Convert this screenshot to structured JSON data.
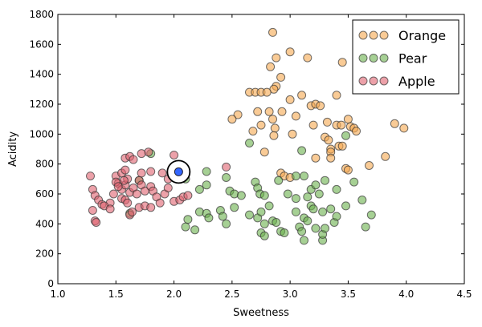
{
  "chart_data": {
    "type": "scatter",
    "xlabel": "Sweetness",
    "ylabel": "Acidity",
    "xlim": [
      1.0,
      4.5
    ],
    "ylim": [
      0,
      1800
    ],
    "xticks": [
      "1.0",
      "1.5",
      "2.0",
      "2.5",
      "3.0",
      "3.5",
      "4.0",
      "4.5"
    ],
    "yticks": [
      "0",
      "200",
      "400",
      "600",
      "800",
      "1000",
      "1200",
      "1400",
      "1600",
      "1800"
    ],
    "grid": false,
    "legend_position": "upper right",
    "series": [
      {
        "name": "Orange",
        "color": "#f5a850",
        "points": [
          [
            2.85,
            1680
          ],
          [
            3.0,
            1550
          ],
          [
            3.15,
            1510
          ],
          [
            2.88,
            1510
          ],
          [
            3.45,
            1480
          ],
          [
            2.83,
            1450
          ],
          [
            2.92,
            1380
          ],
          [
            2.88,
            1320
          ],
          [
            2.86,
            1300
          ],
          [
            2.65,
            1280
          ],
          [
            2.7,
            1280
          ],
          [
            2.75,
            1280
          ],
          [
            2.8,
            1280
          ],
          [
            3.1,
            1260
          ],
          [
            3.0,
            1230
          ],
          [
            3.4,
            1260
          ],
          [
            2.72,
            1150
          ],
          [
            2.82,
            1150
          ],
          [
            2.93,
            1150
          ],
          [
            3.18,
            1190
          ],
          [
            3.22,
            1200
          ],
          [
            3.26,
            1190
          ],
          [
            2.55,
            1130
          ],
          [
            2.5,
            1100
          ],
          [
            2.85,
            1100
          ],
          [
            2.75,
            1060
          ],
          [
            2.68,
            1020
          ],
          [
            2.87,
            1040
          ],
          [
            2.86,
            990
          ],
          [
            3.02,
            1000
          ],
          [
            3.05,
            1120
          ],
          [
            3.2,
            1060
          ],
          [
            3.32,
            1080
          ],
          [
            3.4,
            1060
          ],
          [
            3.44,
            1060
          ],
          [
            3.5,
            1100
          ],
          [
            3.52,
            1050
          ],
          [
            3.55,
            1040
          ],
          [
            3.57,
            1020
          ],
          [
            3.9,
            1070
          ],
          [
            3.98,
            1040
          ],
          [
            3.3,
            980
          ],
          [
            3.33,
            960
          ],
          [
            3.35,
            900
          ],
          [
            3.35,
            880
          ],
          [
            3.42,
            920
          ],
          [
            3.45,
            920
          ],
          [
            2.78,
            880
          ],
          [
            3.22,
            840
          ],
          [
            3.35,
            840
          ],
          [
            3.82,
            850
          ],
          [
            2.92,
            740
          ],
          [
            2.95,
            720
          ],
          [
            3.0,
            710
          ],
          [
            3.48,
            770
          ],
          [
            3.5,
            760
          ],
          [
            3.68,
            790
          ]
        ]
      },
      {
        "name": "Pear",
        "color": "#6ab04c",
        "points": [
          [
            1.8,
            870
          ],
          [
            2.28,
            750
          ],
          [
            2.65,
            940
          ],
          [
            3.1,
            890
          ],
          [
            3.48,
            990
          ],
          [
            2.1,
            700
          ],
          [
            2.45,
            710
          ],
          [
            2.7,
            680
          ],
          [
            2.9,
            690
          ],
          [
            3.05,
            720
          ],
          [
            3.12,
            720
          ],
          [
            3.3,
            690
          ],
          [
            3.4,
            630
          ],
          [
            3.55,
            680
          ],
          [
            2.22,
            630
          ],
          [
            2.28,
            660
          ],
          [
            2.48,
            620
          ],
          [
            2.52,
            600
          ],
          [
            2.58,
            590
          ],
          [
            2.72,
            640
          ],
          [
            2.74,
            600
          ],
          [
            2.78,
            590
          ],
          [
            2.82,
            520
          ],
          [
            2.98,
            600
          ],
          [
            3.05,
            570
          ],
          [
            3.15,
            580
          ],
          [
            3.18,
            630
          ],
          [
            3.22,
            660
          ],
          [
            3.25,
            600
          ],
          [
            3.28,
            480
          ],
          [
            3.35,
            500
          ],
          [
            3.48,
            520
          ],
          [
            3.62,
            560
          ],
          [
            3.7,
            460
          ],
          [
            2.22,
            480
          ],
          [
            2.28,
            470
          ],
          [
            2.4,
            490
          ],
          [
            2.42,
            450
          ],
          [
            2.45,
            400
          ],
          [
            2.52,
            510
          ],
          [
            2.65,
            460
          ],
          [
            2.72,
            440
          ],
          [
            2.75,
            480
          ],
          [
            2.78,
            400
          ],
          [
            2.85,
            420
          ],
          [
            2.88,
            410
          ],
          [
            2.92,
            350
          ],
          [
            3.05,
            480
          ],
          [
            3.08,
            380
          ],
          [
            3.1,
            350
          ],
          [
            3.12,
            440
          ],
          [
            3.15,
            420
          ],
          [
            3.18,
            520
          ],
          [
            3.2,
            500
          ],
          [
            3.38,
            410
          ],
          [
            3.4,
            450
          ],
          [
            3.65,
            380
          ],
          [
            2.12,
            430
          ],
          [
            2.1,
            380
          ],
          [
            2.18,
            360
          ],
          [
            2.75,
            340
          ],
          [
            2.78,
            320
          ],
          [
            2.95,
            340
          ],
          [
            3.12,
            290
          ],
          [
            3.28,
            290
          ],
          [
            3.28,
            330
          ],
          [
            3.3,
            370
          ],
          [
            3.22,
            370
          ],
          [
            1.62,
            470
          ],
          [
            1.7,
            690
          ],
          [
            2.3,
            440
          ]
        ]
      },
      {
        "name": "Apple",
        "color": "#e06370",
        "points": [
          [
            1.78,
            880
          ],
          [
            2.0,
            860
          ],
          [
            1.58,
            840
          ],
          [
            1.72,
            870
          ],
          [
            1.62,
            850
          ],
          [
            1.65,
            830
          ],
          [
            1.5,
            720
          ],
          [
            1.55,
            740
          ],
          [
            1.58,
            760
          ],
          [
            1.7,
            690
          ],
          [
            1.72,
            740
          ],
          [
            1.8,
            750
          ],
          [
            1.9,
            740
          ],
          [
            1.95,
            700
          ],
          [
            2.02,
            740
          ],
          [
            2.45,
            780
          ],
          [
            1.28,
            720
          ],
          [
            1.3,
            630
          ],
          [
            1.32,
            590
          ],
          [
            1.35,
            560
          ],
          [
            1.38,
            530
          ],
          [
            1.45,
            540
          ],
          [
            1.48,
            600
          ],
          [
            1.52,
            670
          ],
          [
            1.55,
            630
          ],
          [
            1.58,
            660
          ],
          [
            1.6,
            700
          ],
          [
            1.62,
            610
          ],
          [
            1.65,
            640
          ],
          [
            1.68,
            600
          ],
          [
            1.72,
            660
          ],
          [
            1.75,
            620
          ],
          [
            1.8,
            650
          ],
          [
            1.82,
            620
          ],
          [
            1.85,
            580
          ],
          [
            1.88,
            540
          ],
          [
            1.92,
            600
          ],
          [
            1.95,
            640
          ],
          [
            2.0,
            550
          ],
          [
            2.05,
            560
          ],
          [
            2.08,
            580
          ],
          [
            2.12,
            590
          ],
          [
            1.3,
            490
          ],
          [
            1.32,
            420
          ],
          [
            1.33,
            410
          ],
          [
            1.4,
            520
          ],
          [
            1.45,
            500
          ],
          [
            1.5,
            680
          ],
          [
            1.55,
            570
          ],
          [
            1.58,
            560
          ],
          [
            1.6,
            540
          ],
          [
            1.62,
            460
          ],
          [
            1.64,
            480
          ],
          [
            1.7,
            510
          ],
          [
            1.75,
            520
          ],
          [
            1.8,
            510
          ],
          [
            1.52,
            650
          ],
          [
            1.57,
            690
          ]
        ]
      }
    ],
    "highlight": {
      "x": 2.04,
      "y": 748,
      "color": "#3366ff"
    }
  }
}
